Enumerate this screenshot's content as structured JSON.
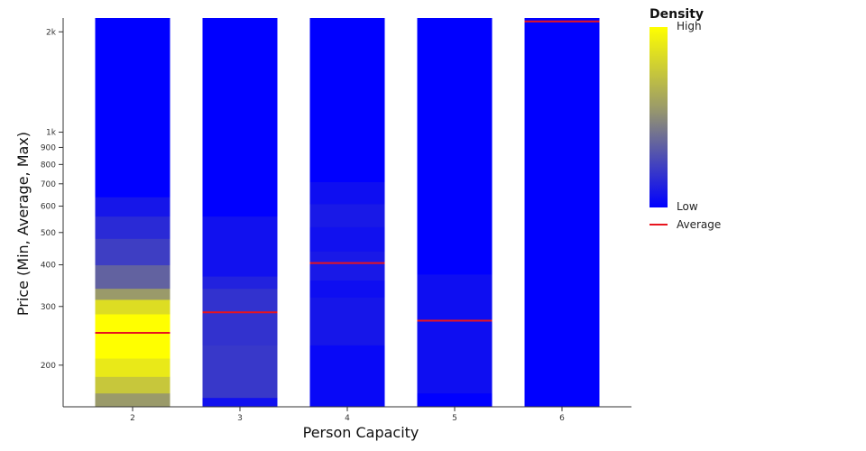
{
  "chart_data": {
    "type": "bar",
    "title": "",
    "xlabel": "Person Capacity",
    "ylabel": "Price (Min, Average, Max)",
    "y_scale": "log",
    "ylim": [
      150,
      2200
    ],
    "y_ticks": [
      {
        "value": 200,
        "label": "200"
      },
      {
        "value": 300,
        "label": "300"
      },
      {
        "value": 400,
        "label": "400"
      },
      {
        "value": 500,
        "label": "500"
      },
      {
        "value": 600,
        "label": "600"
      },
      {
        "value": 700,
        "label": "700"
      },
      {
        "value": 800,
        "label": "800"
      },
      {
        "value": 900,
        "label": "900"
      },
      {
        "value": 1000,
        "label": "1k"
      },
      {
        "value": 2000,
        "label": "2k"
      }
    ],
    "categories": [
      "2",
      "3",
      "4",
      "5",
      "6"
    ],
    "bars": [
      {
        "category": "2",
        "min": 150,
        "max": 2200,
        "average": 250,
        "density": [
          {
            "from": 150,
            "to": 165,
            "value": 0.55
          },
          {
            "from": 165,
            "to": 185,
            "value": 0.75
          },
          {
            "from": 185,
            "to": 210,
            "value": 0.9
          },
          {
            "from": 210,
            "to": 285,
            "value": 1.0
          },
          {
            "from": 285,
            "to": 315,
            "value": 0.85
          },
          {
            "from": 315,
            "to": 340,
            "value": 0.55
          },
          {
            "from": 340,
            "to": 400,
            "value": 0.35
          },
          {
            "from": 400,
            "to": 480,
            "value": 0.22
          },
          {
            "from": 480,
            "to": 560,
            "value": 0.15
          },
          {
            "from": 560,
            "to": 640,
            "value": 0.08
          },
          {
            "from": 640,
            "to": 2200,
            "value": 0.0
          }
        ]
      },
      {
        "category": "3",
        "min": 150,
        "max": 2200,
        "average": 288,
        "density": [
          {
            "from": 150,
            "to": 160,
            "value": 0.06
          },
          {
            "from": 160,
            "to": 230,
            "value": 0.2
          },
          {
            "from": 230,
            "to": 340,
            "value": 0.18
          },
          {
            "from": 340,
            "to": 370,
            "value": 0.12
          },
          {
            "from": 370,
            "to": 560,
            "value": 0.06
          },
          {
            "from": 560,
            "to": 2200,
            "value": 0.0
          }
        ]
      },
      {
        "category": "4",
        "min": 150,
        "max": 2200,
        "average": 405,
        "density": [
          {
            "from": 150,
            "to": 230,
            "value": 0.03
          },
          {
            "from": 230,
            "to": 320,
            "value": 0.08
          },
          {
            "from": 320,
            "to": 360,
            "value": 0.05
          },
          {
            "from": 360,
            "to": 440,
            "value": 0.09
          },
          {
            "from": 440,
            "to": 520,
            "value": 0.06
          },
          {
            "from": 520,
            "to": 610,
            "value": 0.09
          },
          {
            "from": 610,
            "to": 710,
            "value": 0.05
          },
          {
            "from": 710,
            "to": 2200,
            "value": 0.0
          }
        ]
      },
      {
        "category": "5",
        "min": 150,
        "max": 2200,
        "average": 272,
        "density": [
          {
            "from": 150,
            "to": 165,
            "value": 0.0
          },
          {
            "from": 165,
            "to": 375,
            "value": 0.05
          },
          {
            "from": 375,
            "to": 2200,
            "value": 0.0
          }
        ]
      },
      {
        "category": "6",
        "min": 150,
        "max": 2200,
        "average": 2150,
        "density": [
          {
            "from": 150,
            "to": 2200,
            "value": 0.0
          }
        ]
      }
    ],
    "colors": {
      "density_high": "#ffff00",
      "density_mid": "#9a9a6a",
      "density_low": "#0000ff",
      "average_line": "#e8141e",
      "axis": "#333333"
    },
    "legend": {
      "title": "Density",
      "high_label": "High",
      "low_label": "Low",
      "average_label": "Average",
      "placement": "right"
    }
  }
}
